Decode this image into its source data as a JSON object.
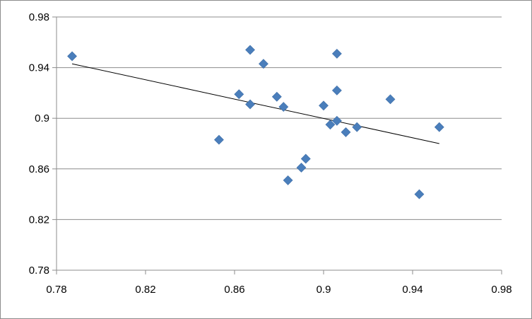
{
  "chart_data": {
    "type": "scatter",
    "title": "",
    "xlabel": "",
    "ylabel": "",
    "xlim": [
      0.78,
      0.98
    ],
    "ylim": [
      0.78,
      0.98
    ],
    "x_ticks": [
      "0.78",
      "0.82",
      "0.86",
      "0.9",
      "0.94",
      "0.98"
    ],
    "y_ticks": [
      "0.78",
      "0.82",
      "0.86",
      "0.9",
      "0.94",
      "0.98"
    ],
    "grid": "horizontal",
    "legend": "none",
    "marker": "diamond",
    "marker_color": "#4a7ebb",
    "trendline_color": "#000000",
    "points": [
      {
        "x": 0.787,
        "y": 0.949
      },
      {
        "x": 0.853,
        "y": 0.883
      },
      {
        "x": 0.862,
        "y": 0.919
      },
      {
        "x": 0.867,
        "y": 0.954
      },
      {
        "x": 0.867,
        "y": 0.911
      },
      {
        "x": 0.873,
        "y": 0.943
      },
      {
        "x": 0.879,
        "y": 0.917
      },
      {
        "x": 0.882,
        "y": 0.909
      },
      {
        "x": 0.884,
        "y": 0.851
      },
      {
        "x": 0.89,
        "y": 0.861
      },
      {
        "x": 0.892,
        "y": 0.868
      },
      {
        "x": 0.9,
        "y": 0.91
      },
      {
        "x": 0.903,
        "y": 0.895
      },
      {
        "x": 0.906,
        "y": 0.898
      },
      {
        "x": 0.906,
        "y": 0.922
      },
      {
        "x": 0.906,
        "y": 0.951
      },
      {
        "x": 0.91,
        "y": 0.889
      },
      {
        "x": 0.915,
        "y": 0.893
      },
      {
        "x": 0.93,
        "y": 0.915
      },
      {
        "x": 0.943,
        "y": 0.84
      },
      {
        "x": 0.952,
        "y": 0.893
      }
    ],
    "trendline": {
      "x": [
        0.787,
        0.952
      ],
      "y": [
        0.943,
        0.88
      ]
    }
  }
}
